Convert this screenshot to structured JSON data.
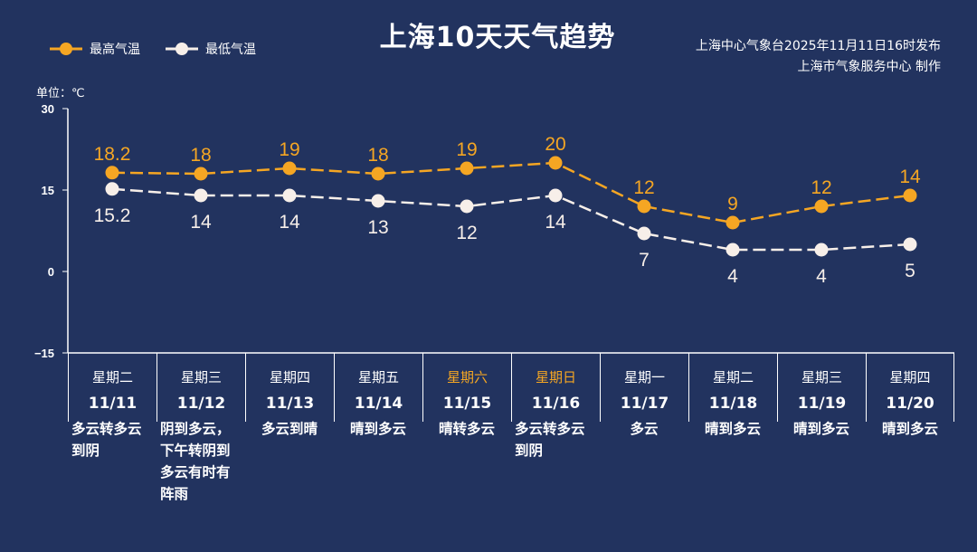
{
  "title": "上海10天天气趋势",
  "source_line1": "上海中心气象台2025年11月11日16时发布",
  "source_line2": "上海市气象服务中心  制作",
  "unit_label": "单位：℃",
  "colors": {
    "background": "#22335f",
    "high": "#f5a623",
    "low": "#f7efe9",
    "weekend": "#f5a623"
  },
  "chart_data": {
    "type": "line",
    "title": "上海10天天气趋势",
    "ylabel": "单位：℃",
    "ylim": [
      -15,
      30
    ],
    "yticks": [
      "30",
      "15",
      "0",
      "−15"
    ],
    "grid": false,
    "legend": "top-left",
    "categories": [
      "11/11",
      "11/12",
      "11/13",
      "11/14",
      "11/15",
      "11/16",
      "11/17",
      "11/18",
      "11/19",
      "11/20"
    ],
    "series": [
      {
        "name": "最高气温",
        "values": [
          18.2,
          18,
          19,
          18,
          19,
          20,
          12,
          9,
          12,
          14
        ],
        "labels": [
          "18.2",
          "18",
          "19",
          "18",
          "19",
          "20",
          "12",
          "9",
          "12",
          "14"
        ]
      },
      {
        "name": "最低气温",
        "values": [
          15.2,
          14,
          14,
          13,
          12,
          14,
          7,
          4,
          4,
          5
        ],
        "labels": [
          "15.2",
          "14",
          "14",
          "13",
          "12",
          "14",
          "7",
          "4",
          "4",
          "5"
        ]
      }
    ]
  },
  "days": [
    {
      "weekday": "星期二",
      "date": "11/11",
      "weather": "多云转多云到阴",
      "weekend": false
    },
    {
      "weekday": "星期三",
      "date": "11/12",
      "weather": "阴到多云，下午转阴到多云有时有阵雨",
      "weekend": false
    },
    {
      "weekday": "星期四",
      "date": "11/13",
      "weather": "多云到晴",
      "weekend": false
    },
    {
      "weekday": "星期五",
      "date": "11/14",
      "weather": "晴到多云",
      "weekend": false
    },
    {
      "weekday": "星期六",
      "date": "11/15",
      "weather": "晴转多云",
      "weekend": true
    },
    {
      "weekday": "星期日",
      "date": "11/16",
      "weather": "多云转多云到阴",
      "weekend": true
    },
    {
      "weekday": "星期一",
      "date": "11/17",
      "weather": "多云",
      "weekend": false
    },
    {
      "weekday": "星期二",
      "date": "11/18",
      "weather": "晴到多云",
      "weekend": false
    },
    {
      "weekday": "星期三",
      "date": "11/19",
      "weather": "晴到多云",
      "weekend": false
    },
    {
      "weekday": "星期四",
      "date": "11/20",
      "weather": "晴到多云",
      "weekend": false
    }
  ]
}
